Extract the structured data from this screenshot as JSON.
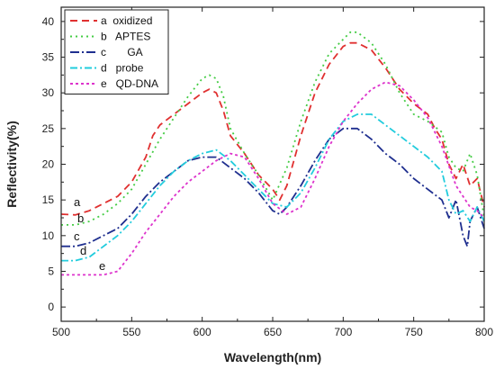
{
  "chart_data": {
    "type": "line",
    "title": "",
    "xlabel": "Wavelength(nm)",
    "ylabel": "Reflectivity(%)",
    "xlim": [
      500,
      800
    ],
    "ylim": [
      -2,
      42
    ],
    "x_ticks": [
      500,
      550,
      600,
      650,
      700,
      750,
      800
    ],
    "y_ticks": [
      0,
      5,
      10,
      15,
      20,
      25,
      30,
      35,
      40
    ],
    "grid": false,
    "legend_position": "top-left",
    "series": [
      {
        "name": "a  oxidized",
        "curve_label": "a",
        "color": "#e03030",
        "dash": "8,5",
        "x": [
          500,
          510,
          520,
          530,
          540,
          550,
          560,
          565,
          570,
          580,
          590,
          600,
          605,
          610,
          615,
          620,
          630,
          640,
          650,
          655,
          660,
          670,
          680,
          690,
          700,
          705,
          710,
          720,
          730,
          740,
          750,
          760,
          765,
          770,
          775,
          780,
          785,
          790,
          795,
          800
        ],
        "y": [
          13,
          12.9,
          13.5,
          14.5,
          15.5,
          17.5,
          21,
          24,
          25.5,
          27,
          28.5,
          30,
          30.5,
          30,
          27.5,
          24,
          21.5,
          18.5,
          16.5,
          15,
          17,
          24,
          30,
          34,
          36.5,
          37,
          37,
          36,
          33.5,
          30.5,
          28.5,
          27,
          25,
          23.5,
          20,
          18,
          20,
          17,
          18,
          14
        ]
      },
      {
        "name": "b   APTES",
        "curve_label": "b",
        "color": "#44cc44",
        "dash": "2,4",
        "x": [
          500,
          510,
          520,
          530,
          540,
          550,
          560,
          570,
          580,
          590,
          600,
          605,
          610,
          615,
          620,
          630,
          640,
          650,
          660,
          670,
          680,
          690,
          700,
          705,
          710,
          720,
          730,
          740,
          750,
          760,
          770,
          775,
          780,
          785,
          790,
          795,
          800
        ],
        "y": [
          11.5,
          11.5,
          12,
          13,
          14.5,
          16.5,
          20,
          23.5,
          26.5,
          29.5,
          32,
          32.5,
          32,
          29.5,
          25,
          21.5,
          18.5,
          15,
          19.5,
          26,
          31.5,
          35.5,
          37.5,
          38.5,
          38.5,
          37,
          34,
          30,
          27,
          26,
          24.5,
          21,
          19.5,
          19,
          21.5,
          18.5,
          12.5
        ]
      },
      {
        "name": "c       GA",
        "curve_label": "c",
        "color": "#1f2f8f",
        "dash": "10,3,2,3",
        "x": [
          500,
          510,
          520,
          530,
          540,
          550,
          560,
          570,
          580,
          590,
          600,
          610,
          620,
          630,
          640,
          650,
          655,
          660,
          670,
          680,
          690,
          700,
          710,
          720,
          730,
          740,
          750,
          760,
          770,
          775,
          780,
          785,
          788,
          790,
          795,
          800
        ],
        "y": [
          8.5,
          8.5,
          9,
          10,
          11,
          13,
          15.5,
          17.5,
          19,
          20.5,
          21,
          21,
          19.5,
          18,
          16,
          13.5,
          13,
          14,
          17,
          20.5,
          23.5,
          25,
          25,
          23.5,
          21.5,
          20,
          18,
          16.5,
          15,
          12.5,
          15,
          10,
          8.5,
          12,
          14,
          11
        ]
      },
      {
        "name": "d   probe",
        "curve_label": "d",
        "color": "#22ccdd",
        "dash": "8,3,2,3",
        "x": [
          500,
          510,
          520,
          530,
          540,
          550,
          560,
          570,
          580,
          590,
          600,
          610,
          620,
          630,
          640,
          650,
          660,
          670,
          680,
          690,
          700,
          710,
          720,
          730,
          740,
          750,
          760,
          770,
          775,
          780,
          785,
          790,
          795,
          800
        ],
        "y": [
          6.5,
          6.5,
          7,
          8.5,
          10,
          12,
          14.5,
          17,
          19,
          20.5,
          21.5,
          22,
          20.5,
          18.5,
          16.5,
          14.5,
          14,
          16,
          19.5,
          23.5,
          26,
          27,
          27,
          25.5,
          24,
          22.5,
          21,
          19,
          15,
          13,
          13.5,
          12,
          14,
          12
        ]
      },
      {
        "name": "e   QD-DNA",
        "curve_label": "e",
        "color": "#dd33cc",
        "dash": "3,3",
        "x": [
          500,
          510,
          520,
          530,
          540,
          550,
          560,
          570,
          580,
          590,
          600,
          610,
          620,
          630,
          640,
          650,
          660,
          670,
          680,
          690,
          700,
          710,
          720,
          730,
          740,
          750,
          760,
          770,
          780,
          790,
          795,
          800
        ],
        "y": [
          4.5,
          4.5,
          4.5,
          4.5,
          5,
          7.5,
          10.5,
          13,
          15.5,
          17.5,
          19,
          20.5,
          21.5,
          21,
          18,
          14.5,
          13,
          14,
          18,
          22.5,
          26,
          28.5,
          30.5,
          31.5,
          31,
          29,
          26.5,
          22.5,
          17,
          14,
          13.5,
          12.5
        ]
      }
    ]
  }
}
